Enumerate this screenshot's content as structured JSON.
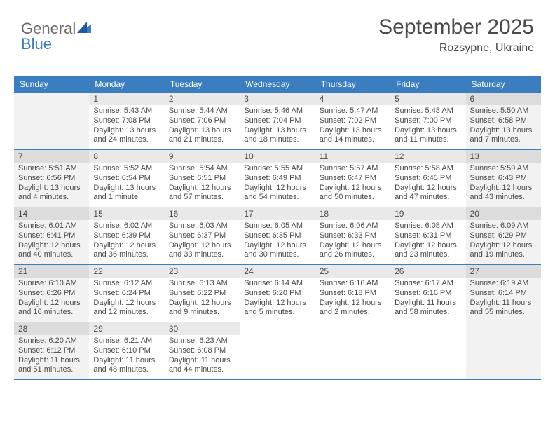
{
  "logo": {
    "part1": "General",
    "part2": "Blue"
  },
  "header": {
    "month": "September 2025",
    "location": "Rozsypne, Ukraine"
  },
  "colors": {
    "header_bg": "#3a7ec0",
    "header_text": "#ffffff",
    "daynum_bg": "#e9e9e9",
    "daynum_bg_shade": "#dcdcdc",
    "cell_shade": "#f2f2f2",
    "text": "#4a4a4a",
    "border": "#3a7ec0"
  },
  "day_names": [
    "Sunday",
    "Monday",
    "Tuesday",
    "Wednesday",
    "Thursday",
    "Friday",
    "Saturday"
  ],
  "weeks": [
    [
      null,
      {
        "n": "1",
        "sr": "Sunrise: 5:43 AM",
        "ss": "Sunset: 7:08 PM",
        "dl": "Daylight: 13 hours and 24 minutes."
      },
      {
        "n": "2",
        "sr": "Sunrise: 5:44 AM",
        "ss": "Sunset: 7:06 PM",
        "dl": "Daylight: 13 hours and 21 minutes."
      },
      {
        "n": "3",
        "sr": "Sunrise: 5:46 AM",
        "ss": "Sunset: 7:04 PM",
        "dl": "Daylight: 13 hours and 18 minutes."
      },
      {
        "n": "4",
        "sr": "Sunrise: 5:47 AM",
        "ss": "Sunset: 7:02 PM",
        "dl": "Daylight: 13 hours and 14 minutes."
      },
      {
        "n": "5",
        "sr": "Sunrise: 5:48 AM",
        "ss": "Sunset: 7:00 PM",
        "dl": "Daylight: 13 hours and 11 minutes."
      },
      {
        "n": "6",
        "sr": "Sunrise: 5:50 AM",
        "ss": "Sunset: 6:58 PM",
        "dl": "Daylight: 13 hours and 7 minutes."
      }
    ],
    [
      {
        "n": "7",
        "sr": "Sunrise: 5:51 AM",
        "ss": "Sunset: 6:56 PM",
        "dl": "Daylight: 13 hours and 4 minutes."
      },
      {
        "n": "8",
        "sr": "Sunrise: 5:52 AM",
        "ss": "Sunset: 6:54 PM",
        "dl": "Daylight: 13 hours and 1 minute."
      },
      {
        "n": "9",
        "sr": "Sunrise: 5:54 AM",
        "ss": "Sunset: 6:51 PM",
        "dl": "Daylight: 12 hours and 57 minutes."
      },
      {
        "n": "10",
        "sr": "Sunrise: 5:55 AM",
        "ss": "Sunset: 6:49 PM",
        "dl": "Daylight: 12 hours and 54 minutes."
      },
      {
        "n": "11",
        "sr": "Sunrise: 5:57 AM",
        "ss": "Sunset: 6:47 PM",
        "dl": "Daylight: 12 hours and 50 minutes."
      },
      {
        "n": "12",
        "sr": "Sunrise: 5:58 AM",
        "ss": "Sunset: 6:45 PM",
        "dl": "Daylight: 12 hours and 47 minutes."
      },
      {
        "n": "13",
        "sr": "Sunrise: 5:59 AM",
        "ss": "Sunset: 6:43 PM",
        "dl": "Daylight: 12 hours and 43 minutes."
      }
    ],
    [
      {
        "n": "14",
        "sr": "Sunrise: 6:01 AM",
        "ss": "Sunset: 6:41 PM",
        "dl": "Daylight: 12 hours and 40 minutes."
      },
      {
        "n": "15",
        "sr": "Sunrise: 6:02 AM",
        "ss": "Sunset: 6:39 PM",
        "dl": "Daylight: 12 hours and 36 minutes."
      },
      {
        "n": "16",
        "sr": "Sunrise: 6:03 AM",
        "ss": "Sunset: 6:37 PM",
        "dl": "Daylight: 12 hours and 33 minutes."
      },
      {
        "n": "17",
        "sr": "Sunrise: 6:05 AM",
        "ss": "Sunset: 6:35 PM",
        "dl": "Daylight: 12 hours and 30 minutes."
      },
      {
        "n": "18",
        "sr": "Sunrise: 6:06 AM",
        "ss": "Sunset: 6:33 PM",
        "dl": "Daylight: 12 hours and 26 minutes."
      },
      {
        "n": "19",
        "sr": "Sunrise: 6:08 AM",
        "ss": "Sunset: 6:31 PM",
        "dl": "Daylight: 12 hours and 23 minutes."
      },
      {
        "n": "20",
        "sr": "Sunrise: 6:09 AM",
        "ss": "Sunset: 6:29 PM",
        "dl": "Daylight: 12 hours and 19 minutes."
      }
    ],
    [
      {
        "n": "21",
        "sr": "Sunrise: 6:10 AM",
        "ss": "Sunset: 6:26 PM",
        "dl": "Daylight: 12 hours and 16 minutes."
      },
      {
        "n": "22",
        "sr": "Sunrise: 6:12 AM",
        "ss": "Sunset: 6:24 PM",
        "dl": "Daylight: 12 hours and 12 minutes."
      },
      {
        "n": "23",
        "sr": "Sunrise: 6:13 AM",
        "ss": "Sunset: 6:22 PM",
        "dl": "Daylight: 12 hours and 9 minutes."
      },
      {
        "n": "24",
        "sr": "Sunrise: 6:14 AM",
        "ss": "Sunset: 6:20 PM",
        "dl": "Daylight: 12 hours and 5 minutes."
      },
      {
        "n": "25",
        "sr": "Sunrise: 6:16 AM",
        "ss": "Sunset: 6:18 PM",
        "dl": "Daylight: 12 hours and 2 minutes."
      },
      {
        "n": "26",
        "sr": "Sunrise: 6:17 AM",
        "ss": "Sunset: 6:16 PM",
        "dl": "Daylight: 11 hours and 58 minutes."
      },
      {
        "n": "27",
        "sr": "Sunrise: 6:19 AM",
        "ss": "Sunset: 6:14 PM",
        "dl": "Daylight: 11 hours and 55 minutes."
      }
    ],
    [
      {
        "n": "28",
        "sr": "Sunrise: 6:20 AM",
        "ss": "Sunset: 6:12 PM",
        "dl": "Daylight: 11 hours and 51 minutes."
      },
      {
        "n": "29",
        "sr": "Sunrise: 6:21 AM",
        "ss": "Sunset: 6:10 PM",
        "dl": "Daylight: 11 hours and 48 minutes."
      },
      {
        "n": "30",
        "sr": "Sunrise: 6:23 AM",
        "ss": "Sunset: 6:08 PM",
        "dl": "Daylight: 11 hours and 44 minutes."
      },
      null,
      null,
      null,
      null
    ]
  ]
}
